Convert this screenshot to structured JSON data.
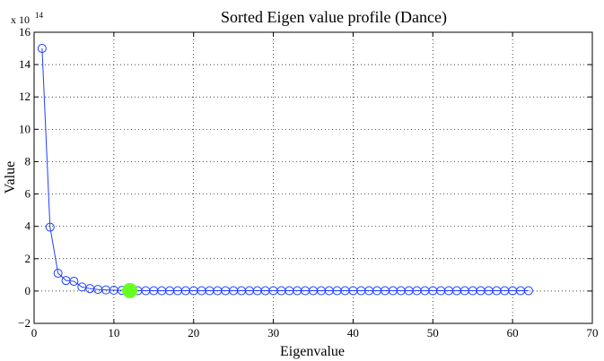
{
  "chart_data": {
    "type": "line",
    "title": "Sorted Eigen value profile (Dance)",
    "xlabel": "Eigenvalue",
    "ylabel": "Value",
    "y_multiplier_base": "x 10",
    "y_multiplier_exponent": "14",
    "xlim": [
      0,
      70
    ],
    "ylim": [
      -2,
      16
    ],
    "xticks": [
      0,
      10,
      20,
      30,
      40,
      50,
      60,
      70
    ],
    "yticks": [
      -2,
      0,
      2,
      4,
      6,
      8,
      10,
      12,
      14,
      16
    ],
    "grid": true,
    "series_color": "#1f3fff",
    "highlight_color": "#66ff22",
    "highlight_index": 12,
    "series": [
      {
        "x": [
          1,
          2,
          3,
          4,
          5,
          6,
          7,
          8,
          9,
          10,
          11,
          12,
          13,
          14,
          15,
          16,
          17,
          18,
          19,
          20,
          21,
          22,
          23,
          24,
          25,
          26,
          27,
          28,
          29,
          30,
          31,
          32,
          33,
          34,
          35,
          36,
          37,
          38,
          39,
          40,
          41,
          42,
          43,
          44,
          45,
          46,
          47,
          48,
          49,
          50,
          51,
          52,
          53,
          54,
          55,
          56,
          57,
          58,
          59,
          60,
          61,
          62
        ],
        "values": [
          15.0,
          3.95,
          1.1,
          0.65,
          0.6,
          0.25,
          0.15,
          0.1,
          0.07,
          0.05,
          0.04,
          0.03,
          0.02,
          0.02,
          0.02,
          0.02,
          0.02,
          0.02,
          0.02,
          0.02,
          0.02,
          0.02,
          0.02,
          0.02,
          0.02,
          0.02,
          0.02,
          0.02,
          0.02,
          0.02,
          0.02,
          0.02,
          0.02,
          0.02,
          0.02,
          0.02,
          0.02,
          0.02,
          0.02,
          0.02,
          0.02,
          0.02,
          0.02,
          0.02,
          0.02,
          0.02,
          0.02,
          0.02,
          0.02,
          0.02,
          0.02,
          0.02,
          0.02,
          0.02,
          0.02,
          0.02,
          0.02,
          0.02,
          0.02,
          0.02,
          0.02,
          0.02
        ]
      }
    ]
  }
}
